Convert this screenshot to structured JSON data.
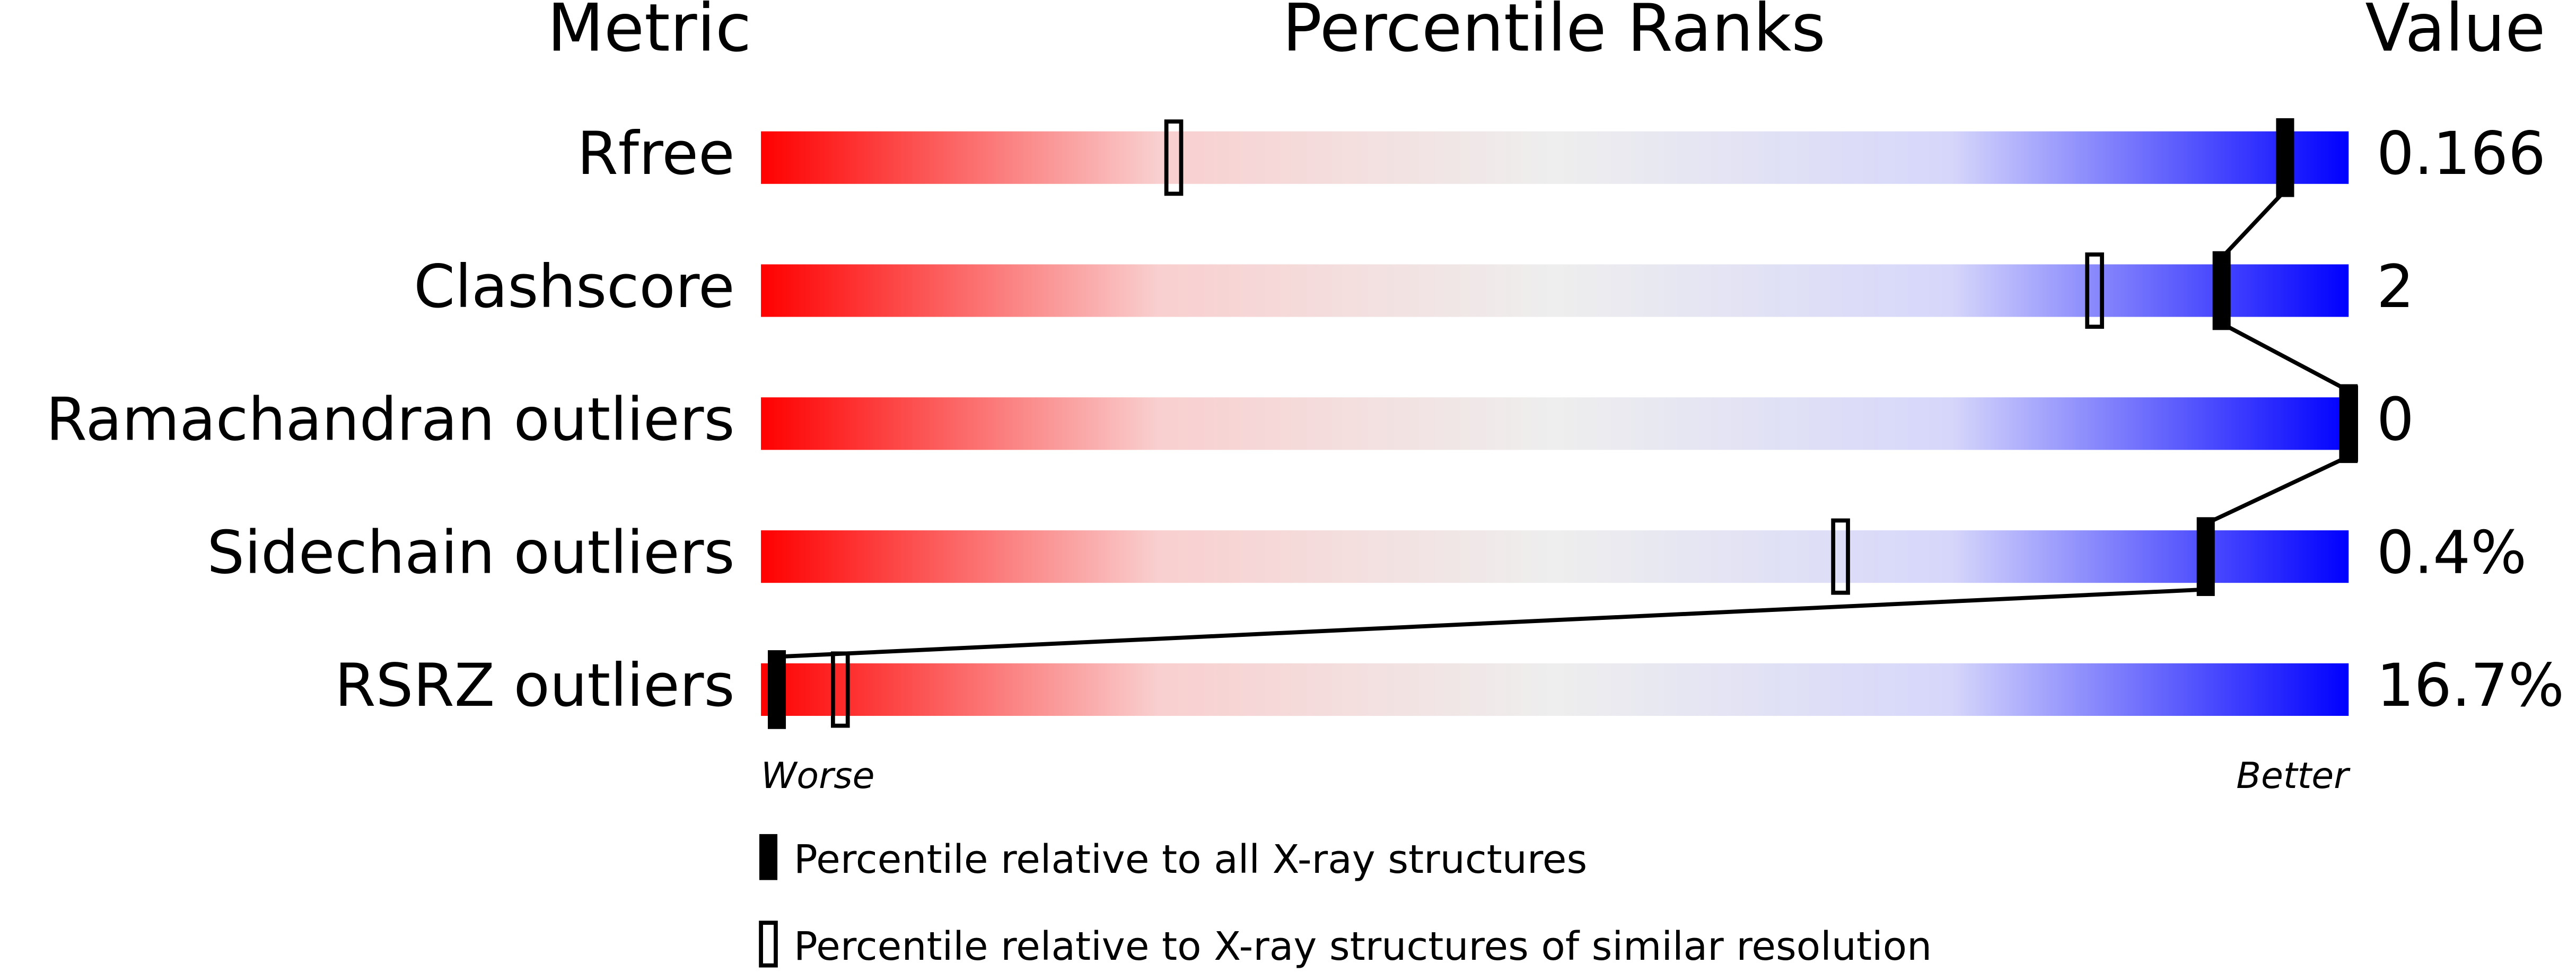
{
  "chart_data": {
    "type": "percentile",
    "headers": [
      "Metric",
      "Percentile Ranks",
      "Value"
    ],
    "categories": [
      "Rfree",
      "Clashscore",
      "Ramachandran outliers",
      "Sidechain outliers",
      "RSRZ outliers"
    ],
    "values": [
      0.166,
      2,
      0,
      0.4,
      16.7
    ],
    "value_labels": [
      "0.166",
      "2",
      "0",
      "0.4%",
      "16.7%"
    ],
    "series": [
      {
        "name": "Percentile relative to all X-ray structures",
        "color": "#000000",
        "style": "filled",
        "values": [
          96,
          92,
          100,
          91,
          1
        ]
      },
      {
        "name": "Percentile relative to X-ray structures of similar resolution",
        "color": "#000000",
        "style": "open",
        "values": [
          26,
          84,
          100,
          68,
          5
        ]
      }
    ],
    "xlim": [
      0,
      100
    ],
    "x_labels": [
      "Worse",
      "Better"
    ],
    "gradient": [
      "#ff0000",
      "#f9cfcf",
      "#eeeeee",
      "#d6d6fb",
      "#0000ff"
    ]
  }
}
